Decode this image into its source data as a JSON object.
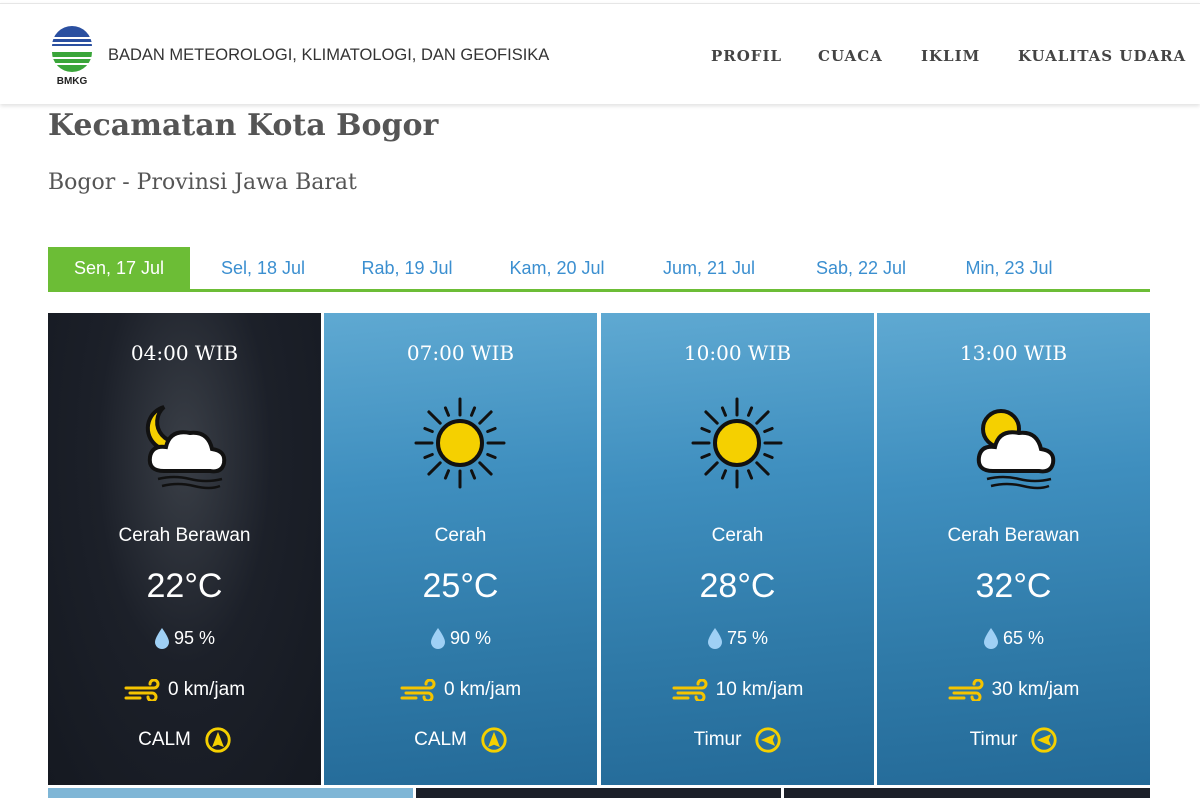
{
  "header": {
    "logo_text": "BMKG",
    "org_name": "BADAN METEOROLOGI, KLIMATOLOGI, DAN GEOFISIKA",
    "nav": [
      "PROFIL",
      "CUACA",
      "IKLIM",
      "KUALITAS UDARA"
    ]
  },
  "location": {
    "title": "Kecamatan Kota Bogor",
    "subtitle": "Bogor - Provinsi Jawa Barat"
  },
  "tabs": [
    {
      "label": "Sen, 17 Jul",
      "active": true
    },
    {
      "label": "Sel, 18 Jul"
    },
    {
      "label": "Rab, 19 Jul"
    },
    {
      "label": "Kam, 20 Jul"
    },
    {
      "label": "Jum, 21 Jul"
    },
    {
      "label": "Sab, 22 Jul"
    },
    {
      "label": "Min, 23 Jul"
    }
  ],
  "colors": {
    "accent": "#6cbd36",
    "link": "#3b8fd0",
    "icon_yellow": "#f5d000"
  },
  "forecasts": [
    {
      "time": "04:00 WIB",
      "icon": "moon-cloud-icon",
      "condition": "Cerah Berawan",
      "temp": "22°C",
      "humidity": "95 %",
      "wind_speed": "0 km/jam",
      "wind_dir": "CALM",
      "dir_icon": "compass-north-icon"
    },
    {
      "time": "07:00 WIB",
      "icon": "sun-icon",
      "condition": "Cerah",
      "temp": "25°C",
      "humidity": "90 %",
      "wind_speed": "0 km/jam",
      "wind_dir": "CALM",
      "dir_icon": "compass-north-icon"
    },
    {
      "time": "10:00 WIB",
      "icon": "sun-icon",
      "condition": "Cerah",
      "temp": "28°C",
      "humidity": "75 %",
      "wind_speed": "10 km/jam",
      "wind_dir": "Timur",
      "dir_icon": "compass-east-icon"
    },
    {
      "time": "13:00 WIB",
      "icon": "sun-cloud-icon",
      "condition": "Cerah Berawan",
      "temp": "32°C",
      "humidity": "65 %",
      "wind_speed": "30 km/jam",
      "wind_dir": "Timur",
      "dir_icon": "compass-east-icon"
    }
  ]
}
